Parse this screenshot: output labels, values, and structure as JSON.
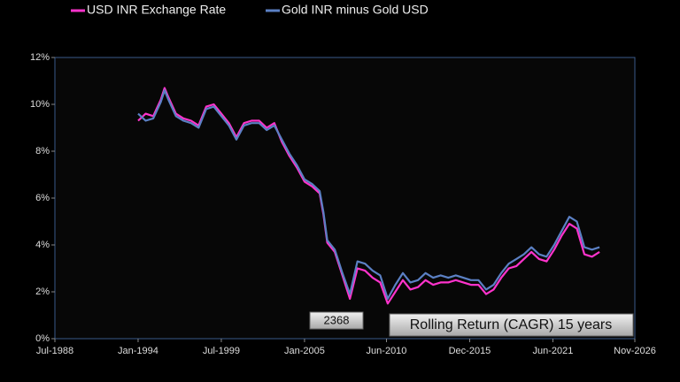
{
  "chart_data": {
    "type": "line",
    "x": [
      "1994-01",
      "1994-07",
      "1995-01",
      "1995-07",
      "1995-10",
      "1996-01",
      "1996-07",
      "1997-01",
      "1997-07",
      "1998-01",
      "1998-07",
      "1999-01",
      "1999-07",
      "2000-01",
      "2000-07",
      "2001-01",
      "2001-07",
      "2002-01",
      "2002-07",
      "2003-01",
      "2003-07",
      "2004-01",
      "2004-07",
      "2005-01",
      "2005-07",
      "2006-01",
      "2006-04",
      "2006-07",
      "2007-01",
      "2007-07",
      "2008-01",
      "2008-07",
      "2009-01",
      "2009-07",
      "2010-01",
      "2010-07",
      "2011-01",
      "2011-07",
      "2012-01",
      "2012-07",
      "2013-01",
      "2013-07",
      "2014-01",
      "2014-07",
      "2015-01",
      "2015-07",
      "2016-01",
      "2016-07",
      "2017-01",
      "2017-07",
      "2018-01",
      "2018-07",
      "2019-01",
      "2019-07",
      "2020-01",
      "2020-07",
      "2021-01",
      "2021-07",
      "2022-01",
      "2022-07",
      "2023-01",
      "2023-07",
      "2024-01",
      "2024-07"
    ],
    "series": [
      {
        "name": "USD INR Exchange Rate",
        "color": "#ff33cc",
        "values": [
          9.3,
          9.6,
          9.5,
          10.2,
          10.7,
          10.3,
          9.6,
          9.4,
          9.3,
          9.1,
          9.9,
          10.0,
          9.6,
          9.2,
          8.6,
          9.2,
          9.3,
          9.3,
          9.0,
          9.2,
          8.4,
          7.8,
          7.3,
          6.7,
          6.5,
          6.2,
          5.3,
          4.1,
          3.7,
          2.7,
          1.7,
          3.0,
          2.9,
          2.6,
          2.4,
          1.5,
          2.0,
          2.5,
          2.1,
          2.2,
          2.5,
          2.3,
          2.4,
          2.4,
          2.5,
          2.4,
          2.3,
          2.3,
          1.9,
          2.1,
          2.6,
          3.0,
          3.1,
          3.4,
          3.7,
          3.4,
          3.3,
          3.8,
          4.4,
          4.9,
          4.7,
          3.6,
          3.5,
          3.7
        ]
      },
      {
        "name": "Gold INR minus Gold USD",
        "color": "#5b80c4",
        "values": [
          9.6,
          9.3,
          9.4,
          10.1,
          10.6,
          10.2,
          9.5,
          9.3,
          9.2,
          9.0,
          9.8,
          9.9,
          9.5,
          9.1,
          8.5,
          9.1,
          9.2,
          9.2,
          8.9,
          9.1,
          8.5,
          7.9,
          7.4,
          6.8,
          6.6,
          6.3,
          5.4,
          4.2,
          3.8,
          2.8,
          1.9,
          3.3,
          3.2,
          2.9,
          2.7,
          1.7,
          2.3,
          2.8,
          2.4,
          2.5,
          2.8,
          2.6,
          2.7,
          2.6,
          2.7,
          2.6,
          2.5,
          2.5,
          2.1,
          2.3,
          2.8,
          3.2,
          3.4,
          3.6,
          3.9,
          3.6,
          3.5,
          4.0,
          4.6,
          5.2,
          5.0,
          3.9,
          3.8,
          3.9
        ]
      }
    ],
    "xlim": [
      "1988-07",
      "2026-11"
    ],
    "xticks": [
      {
        "value": "1988-07",
        "label": "Jul-1988"
      },
      {
        "value": "1994-01",
        "label": "Jan-1994"
      },
      {
        "value": "1999-07",
        "label": "Jul-1999"
      },
      {
        "value": "2005-01",
        "label": "Jan-2005"
      },
      {
        "value": "2010-06",
        "label": "Jun-2010"
      },
      {
        "value": "2015-12",
        "label": "Dec-2015"
      },
      {
        "value": "2021-06",
        "label": "Jun-2021"
      },
      {
        "value": "2026-11",
        "label": "Nov-2026"
      }
    ],
    "ylim": [
      0,
      12
    ],
    "yticks": [
      {
        "value": 0,
        "label": "0%"
      },
      {
        "value": 2,
        "label": "2%"
      },
      {
        "value": 4,
        "label": "4%"
      },
      {
        "value": 6,
        "label": "6%"
      },
      {
        "value": 8,
        "label": "8%"
      },
      {
        "value": 10,
        "label": "10%"
      },
      {
        "value": 12,
        "label": "12%"
      }
    ],
    "grid": false,
    "annotations": [
      "2368",
      "Rolling Return (CAGR) 15 years"
    ]
  }
}
